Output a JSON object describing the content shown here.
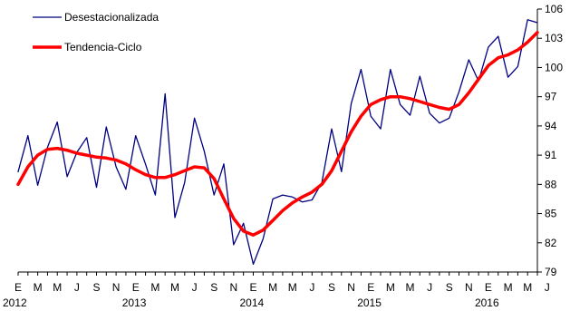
{
  "chart_data": {
    "type": "line",
    "ylim": [
      79,
      106
    ],
    "y_ticks": [
      79,
      82,
      85,
      88,
      91,
      94,
      97,
      100,
      103,
      106
    ],
    "legend_position": "top-left",
    "grid": false,
    "month_labels": [
      "E",
      "M",
      "M",
      "J",
      "S",
      "N",
      "E",
      "M",
      "M",
      "J",
      "S",
      "N",
      "E",
      "M",
      "M",
      "J",
      "S",
      "N",
      "E",
      "M",
      "M",
      "J",
      "S",
      "N",
      "E",
      "M",
      "M",
      "J"
    ],
    "year_labels": [
      "2012",
      "2013",
      "2014",
      "2015",
      "2016"
    ],
    "x": [
      "2012-01",
      "2012-02",
      "2012-03",
      "2012-04",
      "2012-05",
      "2012-06",
      "2012-07",
      "2012-08",
      "2012-09",
      "2012-10",
      "2012-11",
      "2012-12",
      "2013-01",
      "2013-02",
      "2013-03",
      "2013-04",
      "2013-05",
      "2013-06",
      "2013-07",
      "2013-08",
      "2013-09",
      "2013-10",
      "2013-11",
      "2013-12",
      "2014-01",
      "2014-02",
      "2014-03",
      "2014-04",
      "2014-05",
      "2014-06",
      "2014-07",
      "2014-08",
      "2014-09",
      "2014-10",
      "2014-11",
      "2014-12",
      "2015-01",
      "2015-02",
      "2015-03",
      "2015-04",
      "2015-05",
      "2015-06",
      "2015-07",
      "2015-08",
      "2015-09",
      "2015-10",
      "2015-11",
      "2015-12",
      "2016-01",
      "2016-02",
      "2016-03",
      "2016-04",
      "2016-05",
      "2016-06"
    ],
    "series": [
      {
        "name": "Desestacionalizada",
        "color": "#000080",
        "values": [
          89.3,
          93.0,
          87.9,
          91.8,
          94.4,
          88.8,
          91.3,
          92.8,
          87.7,
          93.9,
          89.8,
          87.5,
          93.0,
          90.1,
          86.9,
          97.3,
          84.6,
          88.2,
          94.8,
          91.4,
          86.9,
          90.1,
          81.8,
          84.0,
          79.8,
          82.4,
          86.5,
          86.9,
          86.7,
          86.2,
          86.4,
          88.2,
          93.7,
          89.3,
          96.3,
          99.8,
          95.0,
          93.7,
          99.8,
          96.2,
          95.1,
          99.1,
          95.3,
          94.3,
          94.8,
          97.5,
          100.8,
          98.6,
          102.1,
          103.2,
          99.0,
          100.1,
          104.9,
          104.6
        ]
      },
      {
        "name": "Tendencia-Ciclo",
        "color": "#ff0000",
        "values": [
          88.0,
          89.8,
          91.0,
          91.6,
          91.7,
          91.5,
          91.2,
          91.0,
          90.8,
          90.7,
          90.5,
          90.1,
          89.5,
          89.0,
          88.7,
          88.7,
          89.0,
          89.4,
          89.8,
          89.7,
          88.6,
          86.5,
          84.5,
          83.2,
          82.8,
          83.3,
          84.3,
          85.3,
          86.1,
          86.7,
          87.2,
          88.0,
          89.4,
          91.4,
          93.4,
          95.0,
          96.2,
          96.7,
          97.0,
          97.0,
          96.8,
          96.5,
          96.2,
          95.9,
          95.7,
          96.2,
          97.4,
          98.8,
          100.2,
          101.0,
          101.3,
          101.8,
          102.6,
          103.6
        ]
      }
    ]
  }
}
